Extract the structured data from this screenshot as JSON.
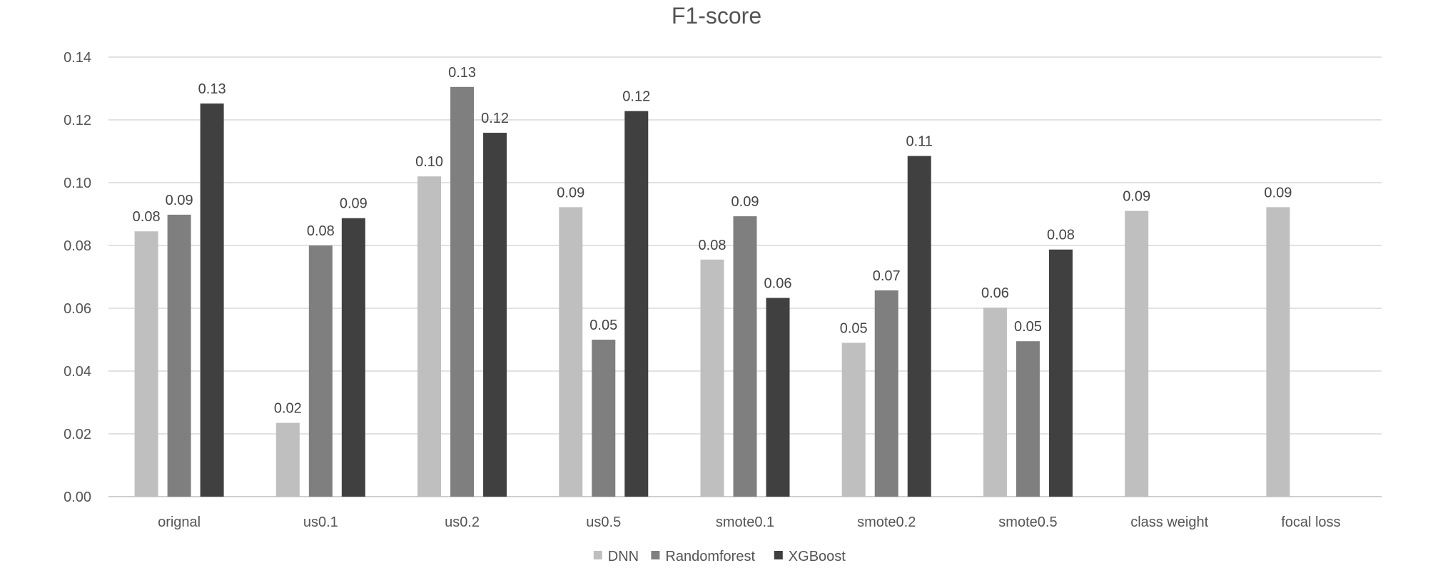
{
  "chart_data": {
    "type": "bar",
    "title": "F1-score",
    "xlabel": "",
    "ylabel": "",
    "ylim": [
      0,
      0.14
    ],
    "ytick_step": 0.02,
    "grid": true,
    "legend_position": "bottom",
    "categories": [
      "orignal",
      "us0.1",
      "us0.2",
      "us0.5",
      "smote0.1",
      "smote0.2",
      "smote0.5",
      "class weight",
      "focal loss"
    ],
    "series": [
      {
        "name": "DNN",
        "color": "#bfbfbf",
        "values": [
          0.0845,
          0.0235,
          0.102,
          0.0922,
          0.0755,
          0.049,
          0.0602,
          0.091,
          0.0922
        ],
        "labels": [
          "0.08",
          "0.02",
          "0.10",
          "0.09",
          "0.08",
          "0.05",
          "0.06",
          "0.09",
          "0.09"
        ]
      },
      {
        "name": "Randomforest",
        "color": "#7f7f7f",
        "values": [
          0.0898,
          0.08,
          0.1305,
          0.05,
          0.0893,
          0.0657,
          0.0495,
          null,
          null
        ],
        "labels": [
          "0.09",
          "0.08",
          "0.13",
          "0.05",
          "0.09",
          "0.07",
          "0.05",
          null,
          null
        ]
      },
      {
        "name": "XGBoost",
        "color": "#404040",
        "values": [
          0.1252,
          0.0887,
          0.1159,
          0.1228,
          0.0633,
          0.1085,
          0.0787,
          null,
          null
        ],
        "labels": [
          "0.13",
          "0.09",
          "0.12",
          "0.12",
          "0.06",
          "0.11",
          "0.08",
          null,
          null
        ]
      }
    ]
  }
}
